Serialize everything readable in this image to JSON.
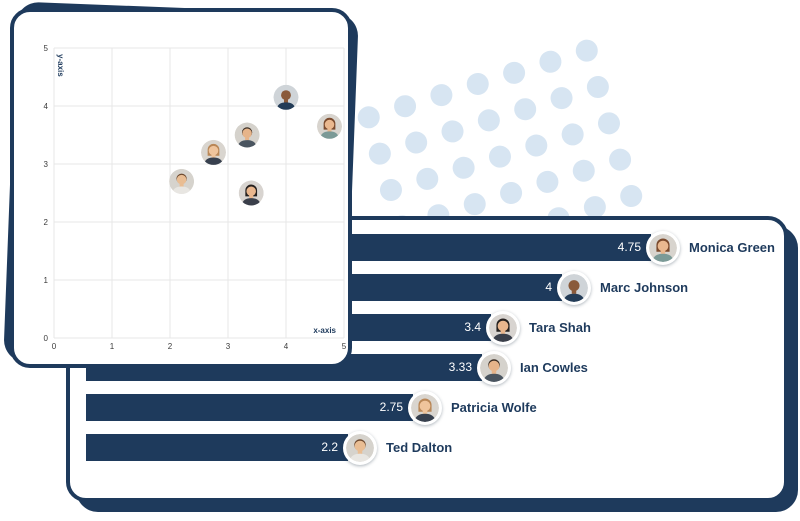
{
  "colors": {
    "navy": "#1e3a5c",
    "dot": "#d7e5f2",
    "panel_bg": "#ffffff",
    "grid": "#e7e7e7",
    "tick_text": "#3a3a3a"
  },
  "chart_data": [
    {
      "type": "scatter",
      "title": "",
      "xlabel": "x-axis",
      "ylabel": "y-axis",
      "xlim": [
        0,
        5
      ],
      "ylim": [
        0,
        5
      ],
      "grid": true,
      "x_ticks": [
        "0",
        "1",
        "2",
        "3",
        "4",
        "5"
      ],
      "y_ticks": [
        "0",
        "1",
        "2",
        "3",
        "4",
        "5"
      ],
      "points": [
        {
          "label": "Ted Dalton",
          "x": 2.2,
          "y": 2.7
        },
        {
          "label": "Patricia Wolfe",
          "x": 2.75,
          "y": 3.2
        },
        {
          "label": "Tara Shah",
          "x": 3.4,
          "y": 2.5
        },
        {
          "label": "Ian Cowles",
          "x": 3.33,
          "y": 3.5
        },
        {
          "label": "Marc Johnson",
          "x": 4,
          "y": 4.15
        },
        {
          "label": "Monica Green",
          "x": 4.75,
          "y": 3.65
        }
      ]
    },
    {
      "type": "bar",
      "orientation": "horizontal",
      "xlim": [
        0,
        5
      ],
      "bar_color": "#1e3a5c",
      "categories": [
        "Monica Green",
        "Marc Johnson",
        "Tara Shah",
        "Ian Cowles",
        "Patricia Wolfe",
        "Ted Dalton"
      ],
      "values": [
        4.75,
        4,
        3.4,
        3.33,
        2.75,
        2.2
      ],
      "value_labels": [
        "4.75",
        "4",
        "3.4",
        "3.33",
        "2.75",
        "2.2"
      ]
    }
  ],
  "avatars": {
    "Monica Green": {
      "bg": "#d8d4ce",
      "skin": "#eab88f",
      "hair": "#7b4a2d",
      "shirt": "#7b9a97",
      "long": true
    },
    "Marc Johnson": {
      "bg": "#cfd4d8",
      "skin": "#8a5a3a",
      "hair": "#3a2a22",
      "shirt": "#233c57",
      "bald": true
    },
    "Tara Shah": {
      "bg": "#d8d4d0",
      "skin": "#e9b68d",
      "hair": "#26211f",
      "shirt": "#3a3f4a",
      "long": true
    },
    "Ian Cowles": {
      "bg": "#d5d2cc",
      "skin": "#e6b48a",
      "hair": "#3c2e24",
      "shirt": "#4a5560"
    },
    "Patricia Wolfe": {
      "bg": "#d9d5cf",
      "skin": "#efc49c",
      "hair": "#b98757",
      "shirt": "#37404e",
      "long": true
    },
    "Ted Dalton": {
      "bg": "#d6d3cd",
      "skin": "#e9bd93",
      "hair": "#6e4a2f",
      "shirt": "#e8e6e2"
    }
  }
}
